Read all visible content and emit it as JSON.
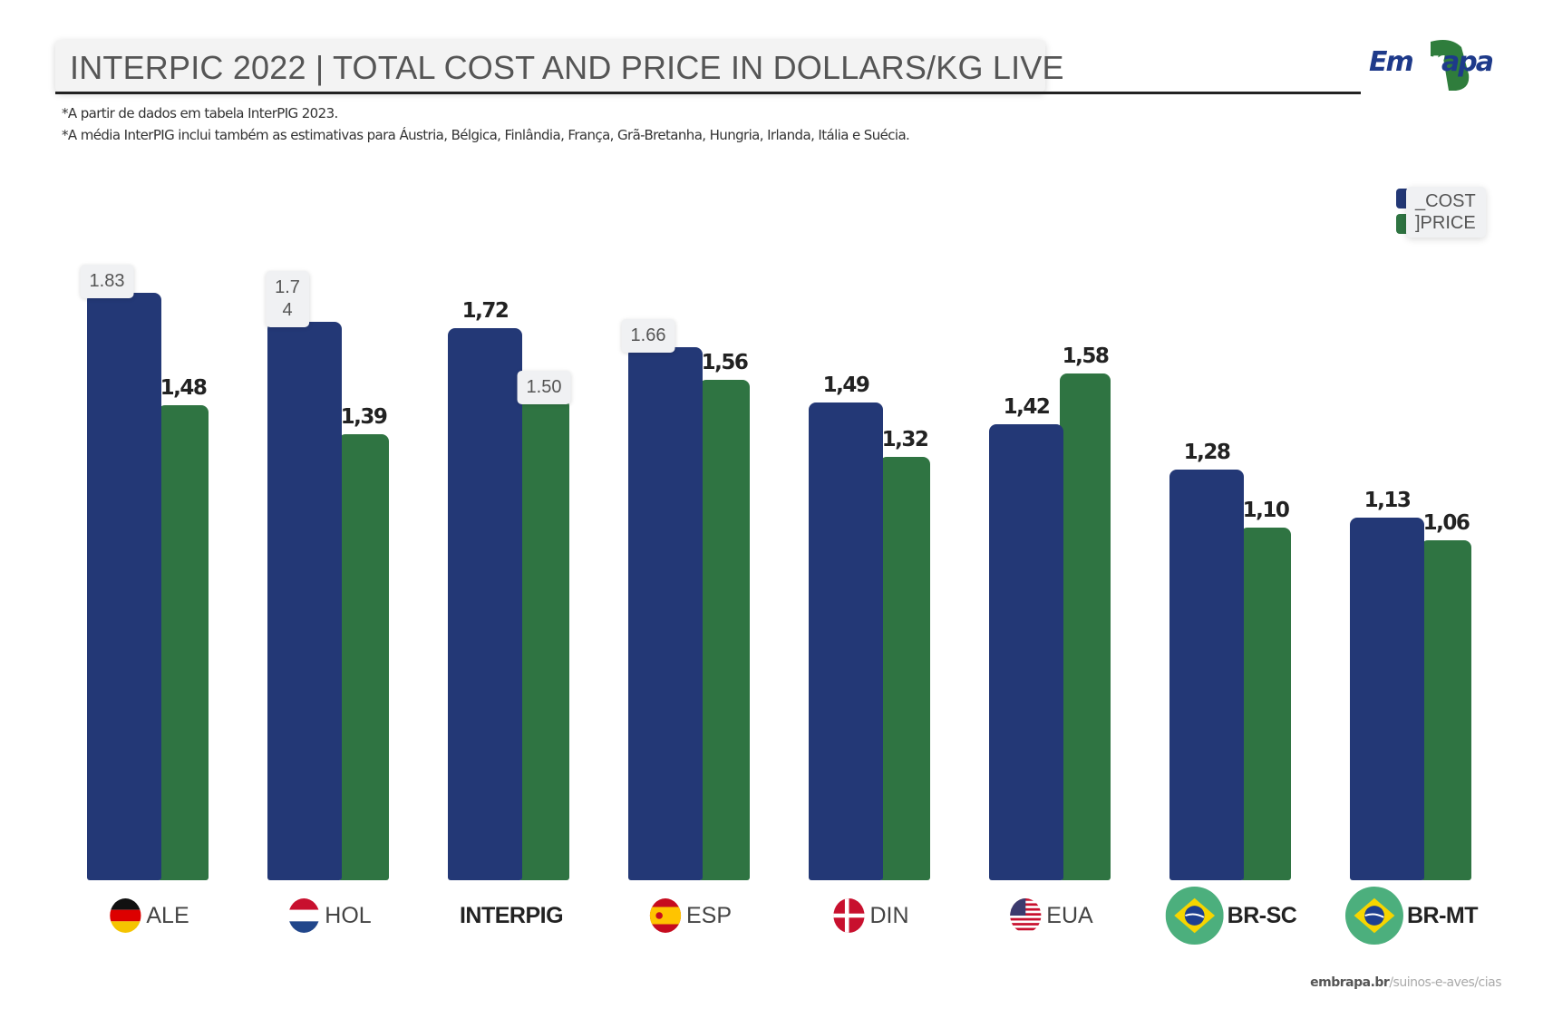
{
  "chart_data": {
    "type": "bar",
    "title": "INTERPIC 2022 | TOTAL COST AND PRICE IN DOLLARS/KG LIVE",
    "notes": [
      "*A partir de dados em tabela InterPIG 2023.",
      "*A média InterPIG inclui também as estimativas para Áustria, Bélgica, Finlândia, França, Grã-Bretanha, Hungria, Irlanda, Itália e Suécia."
    ],
    "categories": [
      "ALE",
      "HOL",
      "INTERPIG",
      "ESP",
      "DIN",
      "EUA",
      "BR-SC",
      "BR-MT"
    ],
    "flags": [
      "germany",
      "netherlands",
      "none",
      "spain",
      "denmark",
      "usa",
      "brazil",
      "brazil"
    ],
    "series": [
      {
        "name": "COST",
        "legend_label": "_COST",
        "color": "#233876",
        "values": [
          1.83,
          1.74,
          1.72,
          1.66,
          1.49,
          1.42,
          1.28,
          1.13
        ],
        "labels": [
          "1.83",
          "1.7\n4",
          "1,72",
          "1.66",
          "1,49",
          "1,42",
          "1,28",
          "1,13"
        ],
        "label_styles": [
          "bubble",
          "bubble",
          "bold",
          "bubble",
          "bold",
          "bold",
          "bold",
          "bold"
        ]
      },
      {
        "name": "PRICE",
        "legend_label": "]PRICE",
        "color": "#2f7442",
        "values": [
          1.48,
          1.39,
          1.5,
          1.56,
          1.32,
          1.58,
          1.1,
          1.06
        ],
        "labels": [
          "1,48",
          "1,39",
          "1.50",
          "1,56",
          "1,32",
          "1,58",
          "1,10",
          "1,06"
        ],
        "label_styles": [
          "bold",
          "bold",
          "bubble",
          "bold",
          "bold",
          "bold",
          "bold",
          "bold"
        ]
      }
    ],
    "ylim": [
      0,
      1.9
    ],
    "grid": false,
    "legend_position": "top-right",
    "xlabel": "",
    "ylabel": ""
  },
  "logo_text": "Embrapa",
  "footer": {
    "domain": "embrapa.br",
    "path": "/suinos-e-aves/cias"
  }
}
